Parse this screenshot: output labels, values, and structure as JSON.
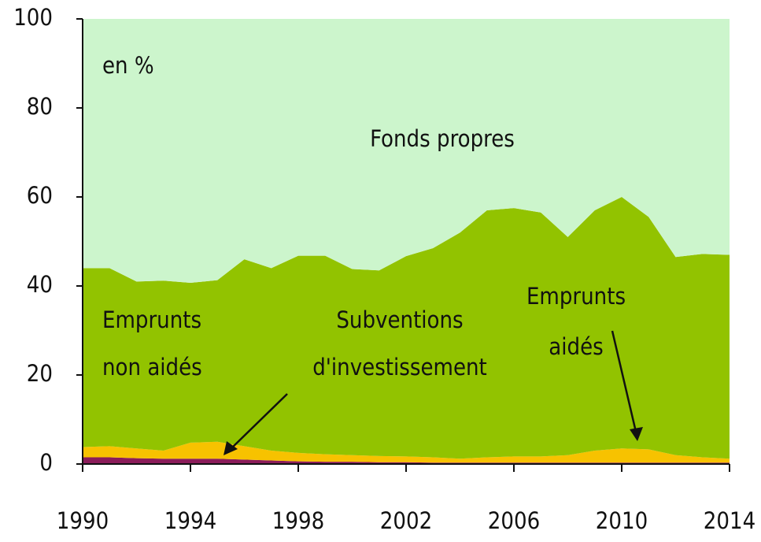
{
  "chart_data": {
    "type": "stacked_area",
    "x": [
      1990,
      1991,
      1992,
      1993,
      1994,
      1995,
      1996,
      1997,
      1998,
      1999,
      2000,
      2001,
      2002,
      2003,
      2004,
      2005,
      2006,
      2007,
      2008,
      2009,
      2010,
      2011,
      2012,
      2013,
      2014
    ],
    "series": [
      {
        "color": "#8b1d5a",
        "values": [
          1.5,
          1.5,
          1.3,
          1.2,
          1.2,
          1.2,
          1.0,
          0.8,
          0.6,
          0.5,
          0.5,
          0.4,
          0.4,
          0.3,
          0.3,
          0.3,
          0.3,
          0.3,
          0.3,
          0.3,
          0.3,
          0.3,
          0.3,
          0.3,
          0.3
        ]
      },
      {
        "color": "#f7c200",
        "values": [
          2.3,
          2.5,
          2.2,
          1.8,
          3.6,
          3.8,
          3.0,
          2.2,
          1.9,
          1.7,
          1.5,
          1.4,
          1.3,
          1.2,
          0.9,
          1.2,
          1.4,
          1.4,
          1.7,
          2.7,
          3.2,
          3.0,
          1.7,
          1.2,
          0.9
        ]
      },
      {
        "color": "#92c300",
        "values": [
          40.2,
          40,
          37.5,
          38.2,
          35.9,
          36.3,
          42,
          41,
          44.3,
          44.6,
          41.8,
          41.7,
          45,
          47,
          50.8,
          55.5,
          55.8,
          54.8,
          49,
          54,
          56.5,
          52.2,
          44.5,
          45.7,
          45.8
        ]
      },
      {
        "color": "#ccf5cc",
        "values": [
          56,
          56,
          59,
          58.8,
          59.3,
          58.7,
          54,
          56,
          53.2,
          53.2,
          56.2,
          56.5,
          53.3,
          51.5,
          48,
          43,
          42.5,
          43.5,
          49,
          43,
          40,
          44.5,
          53.5,
          52.8,
          53
        ]
      }
    ],
    "annotations": [
      {
        "lines": [
          "en %"
        ]
      },
      {
        "lines": [
          "Fonds propres"
        ]
      },
      {
        "lines": [
          "Emprunts",
          "non aidés"
        ]
      },
      {
        "lines": [
          "Subventions",
          "d'investissement"
        ]
      },
      {
        "lines": [
          "Emprunts",
          "aidés"
        ]
      }
    ],
    "xlim": [
      1990,
      2014
    ],
    "xticks": [
      1990,
      1994,
      1998,
      2002,
      2006,
      2010,
      2014
    ],
    "ylim": [
      0,
      100
    ],
    "yticks": [
      0,
      20,
      40,
      60,
      80,
      100
    ]
  }
}
